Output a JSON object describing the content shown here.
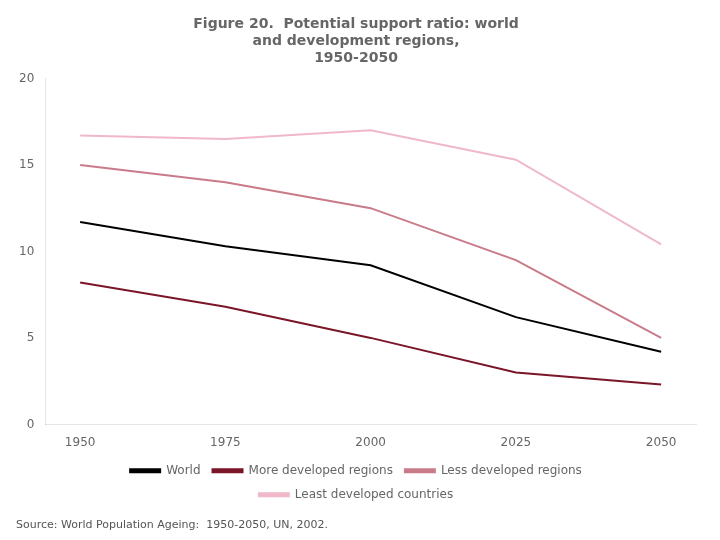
{
  "chart_data": {
    "type": "line",
    "title": [
      "Figure 20.  Potential support ratio: world",
      "and development regions,",
      "1950-2050"
    ],
    "annotations": [
      "Source: World Population Ageing:  1950-2050, UN, 2002."
    ],
    "x": [
      1950,
      1975,
      2000,
      2025,
      2050
    ],
    "series": [
      {
        "name": "World",
        "color": "#000000",
        "values": [
          11.7,
          10.3,
          9.2,
          6.2,
          4.2
        ]
      },
      {
        "name": "More developed regions",
        "color": "#7b1528",
        "values": [
          8.2,
          6.8,
          5.0,
          3.0,
          2.3
        ]
      },
      {
        "name": "Less developed regions",
        "color": "#c97b8a",
        "values": [
          15.0,
          14.0,
          12.5,
          9.5,
          5.0
        ]
      },
      {
        "name": "Least developed countries",
        "color": "#f0b8c8",
        "values": [
          16.7,
          16.5,
          17.0,
          15.3,
          10.4
        ]
      }
    ],
    "xlim": [
      1944,
      2056
    ],
    "xticks": [
      1950,
      1975,
      2000,
      2025,
      2050
    ],
    "ylim": [
      0,
      20
    ],
    "yticks": [
      0,
      5,
      10,
      15,
      20
    ],
    "grid": false,
    "legend": "bottom"
  }
}
